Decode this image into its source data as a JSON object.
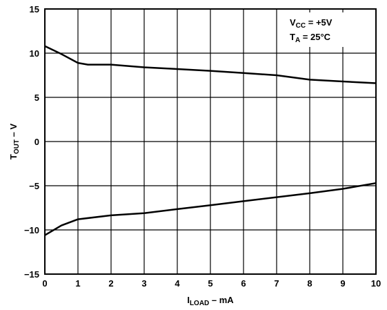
{
  "chart_data": {
    "type": "line",
    "title": "",
    "xlabel": {
      "main": "I",
      "sub": "LOAD",
      "rest": " – mA"
    },
    "ylabel": {
      "main": "T",
      "sub": "OUT",
      "rest": " – V"
    },
    "xlim": [
      0,
      10
    ],
    "ylim": [
      -15,
      15
    ],
    "x_ticks": [
      "0",
      "1",
      "2",
      "3",
      "4",
      "5",
      "6",
      "7",
      "8",
      "9",
      "10"
    ],
    "y_ticks": [
      "15",
      "10",
      "5",
      "0",
      "−5",
      "−10",
      "−15"
    ],
    "grid": true,
    "annotations": [
      {
        "main": "V",
        "sub": "CC",
        "rest": " = +5V"
      },
      {
        "main": "T",
        "sub": "A",
        "rest": " = 25°C"
      }
    ],
    "series": [
      {
        "x": [
          0,
          0.5,
          1,
          1.3,
          2,
          3,
          4,
          5,
          6,
          7,
          8,
          9,
          10
        ],
        "y": [
          10.8,
          9.9,
          8.9,
          8.7,
          8.7,
          8.4,
          8.2,
          8.0,
          7.75,
          7.5,
          7.0,
          6.8,
          6.6
        ]
      },
      {
        "x": [
          0,
          0.5,
          1,
          2,
          3,
          4,
          5,
          6,
          7,
          8,
          9,
          10
        ],
        "y": [
          -10.6,
          -9.5,
          -8.8,
          -8.35,
          -8.1,
          -7.65,
          -7.2,
          -6.75,
          -6.3,
          -5.85,
          -5.35,
          -4.7
        ]
      }
    ]
  }
}
